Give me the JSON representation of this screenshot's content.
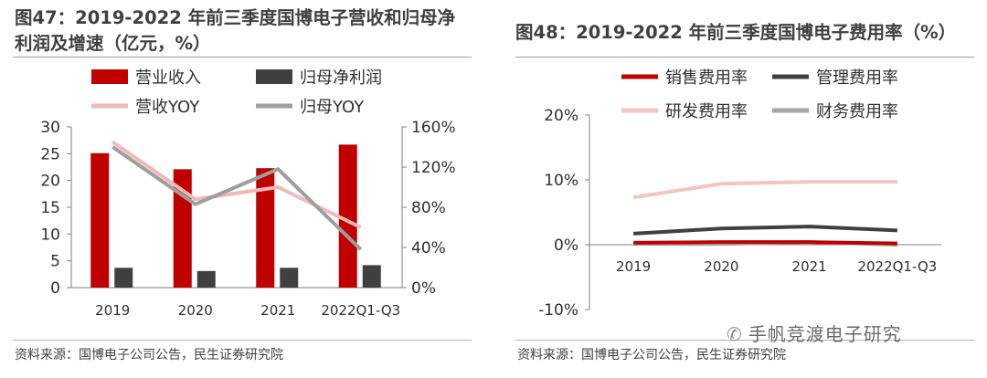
{
  "left": {
    "title": "图47：2019-2022 年前三季度国博电子营收和归母净利润及增速（亿元，%）",
    "source": "资料来源：国博电子公司公告，民生证券研究院"
  },
  "right": {
    "title": "图48：2019-2022 年前三季度国博电子费用率（%）",
    "source": "资料来源：国博电子公司公告，民生证券研究院"
  },
  "watermark": "手帆竞渡电子研究",
  "colors": {
    "revenue": "#c00000",
    "net_profit": "#404040",
    "revenue_yoy": "#f2b8b8",
    "profit_yoy": "#9e9e9e",
    "sales_rate": "#c00000",
    "mgmt_rate": "#404040",
    "rd_rate": "#f2c4c4",
    "fin_rate": "#a6a6a6"
  },
  "chart_data": [
    {
      "type": "bar",
      "categories": [
        "2019",
        "2020",
        "2021",
        "2022Q1-Q3"
      ],
      "series": [
        {
          "name": "营业收入",
          "kind": "bar",
          "axis": "left",
          "values": [
            25.1,
            22.1,
            22.3,
            26.7
          ]
        },
        {
          "name": "归母净利润",
          "kind": "bar",
          "axis": "left",
          "values": [
            3.7,
            3.1,
            3.7,
            4.2
          ]
        },
        {
          "name": "营收YOY",
          "kind": "line",
          "axis": "right",
          "values": [
            145,
            88,
            100,
            60
          ]
        },
        {
          "name": "归母YOY",
          "kind": "line",
          "axis": "right",
          "values": [
            140,
            83,
            118,
            38
          ]
        }
      ],
      "ylim_left": [
        0,
        30
      ],
      "yticks_left": [
        "0",
        "5",
        "10",
        "15",
        "20",
        "25",
        "30"
      ],
      "ylim_right": [
        0,
        160
      ],
      "yticks_right": [
        "0%",
        "40%",
        "80%",
        "120%",
        "160%"
      ],
      "legend": [
        "营业收入",
        "归母净利润",
        "营收YOY",
        "归母YOY"
      ]
    },
    {
      "type": "line",
      "categories": [
        "2019",
        "2020",
        "2021",
        "2022Q1-Q3"
      ],
      "series": [
        {
          "name": "销售费用率",
          "values": [
            0.3,
            0.4,
            0.4,
            0.2
          ]
        },
        {
          "name": "管理费用率",
          "values": [
            1.7,
            2.5,
            2.8,
            2.2
          ]
        },
        {
          "name": "研发费用率",
          "values": [
            7.3,
            9.4,
            9.7,
            9.7
          ]
        },
        {
          "name": "财务费用率",
          "values": [
            0.1,
            0.1,
            0.4,
            0.0
          ]
        }
      ],
      "ylim": [
        -10,
        20
      ],
      "yticks": [
        "-10%",
        "0%",
        "10%",
        "20%"
      ],
      "legend": [
        "销售费用率",
        "管理费用率",
        "研发费用率",
        "财务费用率"
      ]
    }
  ]
}
